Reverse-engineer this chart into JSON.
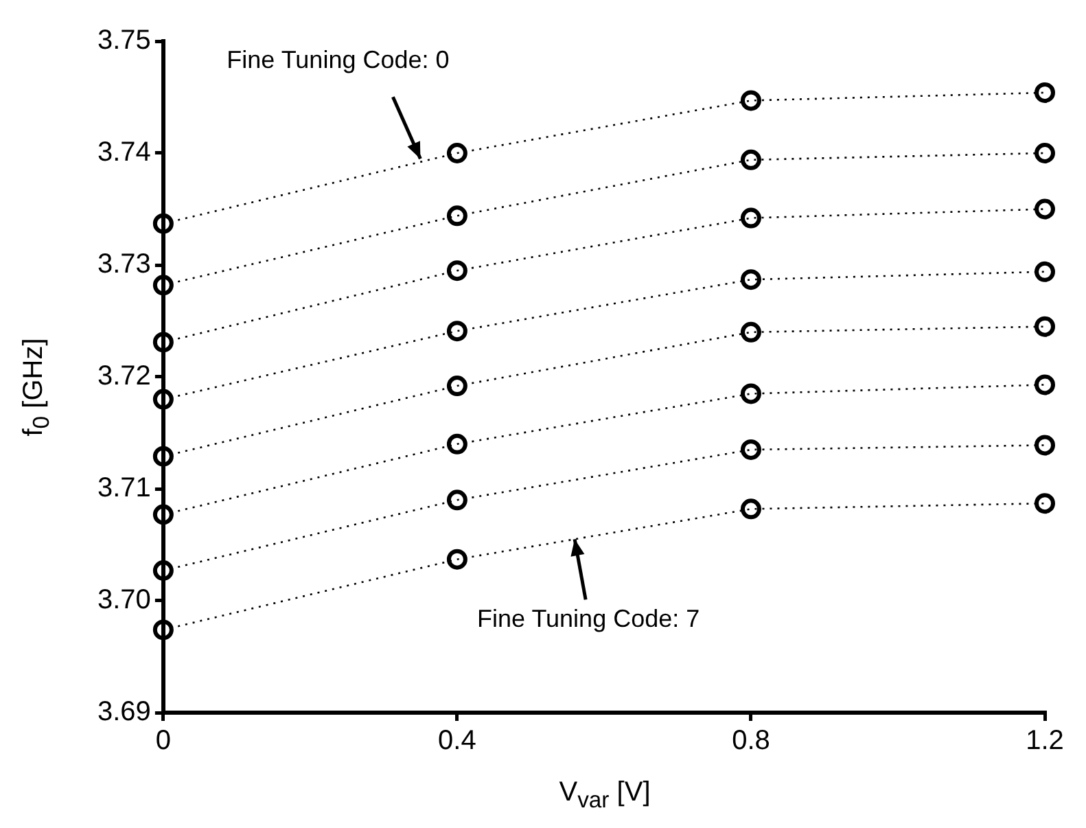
{
  "chart_data": {
    "type": "line",
    "xlabel": "V$_{var}$ [V]",
    "ylabel": "f$_{0}$ [GHz]",
    "x": [
      0,
      0.4,
      0.8,
      1.2
    ],
    "xlim": [
      0,
      1.2
    ],
    "xticks": [
      0,
      0.4,
      0.8,
      1.2
    ],
    "ylim": [
      3.69,
      3.75
    ],
    "yticks": [
      3.69,
      {
        "value": 3.7,
        "label": "3.70"
      },
      3.71,
      3.72,
      3.73,
      3.74,
      3.75
    ],
    "series": [
      {
        "color": "#000000",
        "values": [
          3.7337,
          3.74,
          3.7447,
          3.7454
        ]
      },
      {
        "color": "#000000",
        "values": [
          3.7282,
          3.7344,
          3.7394,
          3.74
        ]
      },
      {
        "color": "#000000",
        "values": [
          3.7231,
          3.7295,
          3.7342,
          3.735
        ]
      },
      {
        "color": "#000000",
        "values": [
          3.718,
          3.7241,
          3.7287,
          3.7294
        ]
      },
      {
        "color": "#000000",
        "values": [
          3.7129,
          3.7192,
          3.724,
          3.7245
        ]
      },
      {
        "color": "#000000",
        "values": [
          3.7077,
          3.714,
          3.7185,
          3.7193
        ]
      },
      {
        "color": "#000000",
        "values": [
          3.7027,
          3.709,
          3.7135,
          3.7139
        ]
      },
      {
        "color": "#000000",
        "values": [
          3.6974,
          3.7037,
          3.7082,
          3.7087
        ]
      }
    ],
    "annotations": [
      {
        "text": "Fine Tuning Code: 0",
        "x": 0.35,
        "y": 3.7395
      },
      {
        "text": "Fine Tuning Code: 7",
        "x": 0.56,
        "y": 3.7055
      }
    ],
    "marker": "circle",
    "line_style": "dotted",
    "grid": false,
    "legend": false
  }
}
